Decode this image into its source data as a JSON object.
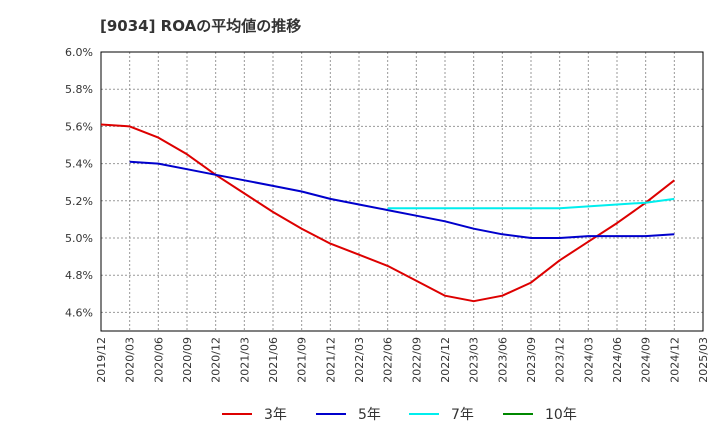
{
  "title": "[9034]  ROAの平均値の推移",
  "chart_data": {
    "type": "line",
    "title": "[9034]  ROAの平均値の推移",
    "xlabel": "",
    "ylabel": "",
    "ylim": [
      4.5,
      6.0
    ],
    "y_ticks": [
      "6.0%",
      "5.8%",
      "5.6%",
      "5.4%",
      "5.2%",
      "5.0%",
      "4.8%",
      "4.6%"
    ],
    "y_tick_values": [
      6.0,
      5.8,
      5.6,
      5.4,
      5.2,
      5.0,
      4.8,
      4.6
    ],
    "x": [
      "2019/12",
      "2020/03",
      "2020/06",
      "2020/09",
      "2020/12",
      "2021/03",
      "2021/06",
      "2021/09",
      "2021/12",
      "2022/03",
      "2022/06",
      "2022/09",
      "2022/12",
      "2023/03",
      "2023/06",
      "2023/09",
      "2023/12",
      "2024/03",
      "2024/06",
      "2024/09",
      "2024/12",
      "2025/03"
    ],
    "grid": true,
    "legend_placement": "bottom",
    "series": [
      {
        "name": "3年",
        "color": "#dd0000",
        "values": [
          5.61,
          5.6,
          5.54,
          5.45,
          5.34,
          5.24,
          5.14,
          5.05,
          4.97,
          4.91,
          4.85,
          4.77,
          4.69,
          4.66,
          4.69,
          4.76,
          4.88,
          4.98,
          5.08,
          5.19,
          5.31,
          null
        ]
      },
      {
        "name": "5年",
        "color": "#0000cc",
        "values": [
          null,
          5.41,
          5.4,
          5.37,
          5.34,
          5.31,
          5.28,
          5.25,
          5.21,
          5.18,
          5.15,
          5.12,
          5.09,
          5.05,
          5.02,
          5.0,
          5.0,
          5.01,
          5.01,
          5.01,
          5.02,
          null
        ]
      },
      {
        "name": "7年",
        "color": "#00eeee",
        "values": [
          null,
          null,
          null,
          null,
          null,
          null,
          null,
          null,
          null,
          null,
          5.16,
          5.16,
          5.16,
          5.16,
          5.16,
          5.16,
          5.16,
          5.17,
          5.18,
          5.19,
          5.21,
          null
        ]
      },
      {
        "name": "10年",
        "color": "#008800",
        "values": [
          null,
          null,
          null,
          null,
          null,
          null,
          null,
          null,
          null,
          null,
          null,
          null,
          null,
          null,
          null,
          null,
          null,
          null,
          null,
          null,
          null,
          null
        ]
      }
    ]
  }
}
